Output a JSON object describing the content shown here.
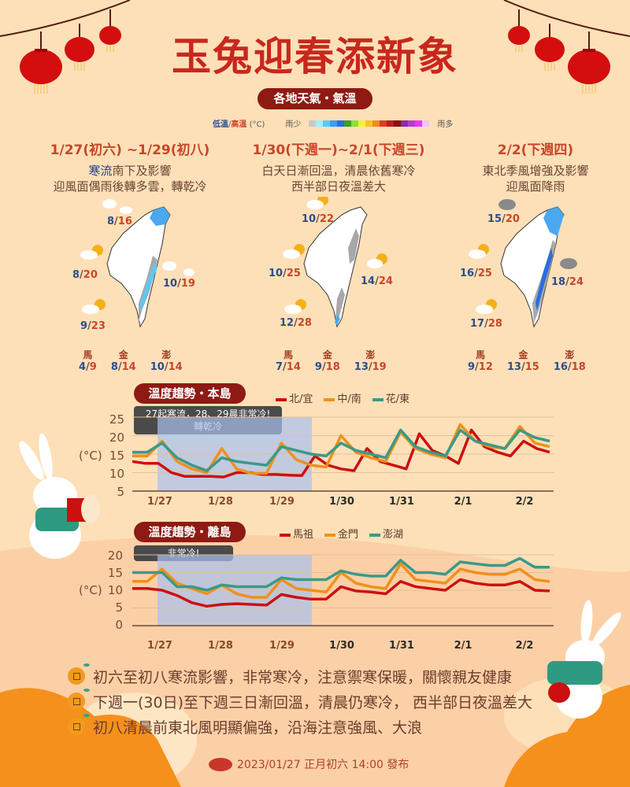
{
  "header": {
    "title": "玉兔迎春添新象",
    "subtitle": "各地天氣・氣溫",
    "legend": {
      "low_label": "低溫",
      "sep": "/",
      "high_label": "高溫",
      "unit": "(°C)",
      "rain_less": "雨少",
      "rain_more": "雨多",
      "rain_colors": [
        "#c8c8c8",
        "#a0f0ff",
        "#5cc8f8",
        "#3c9cf0",
        "#2c6ce0",
        "#3ca028",
        "#8ce038",
        "#f8f038",
        "#f8c030",
        "#f08c20",
        "#e03c20",
        "#b42020",
        "#8c1010",
        "#8c2ca0",
        "#b43cd0",
        "#e03cf0",
        "#f0c8f8"
      ]
    },
    "colors": {
      "title": "#c9271d",
      "pill": "#8e1a13",
      "low": "#2e4c8e",
      "high": "#c9452a",
      "background": "#fde0b8"
    }
  },
  "periods": [
    {
      "heading": "1/27(初六) ~1/29(初八)",
      "desc_line1_em": "寒流",
      "desc_line1": "南下及影響",
      "desc_line2": "迎風面偶雨後轉多雲，轉乾冷",
      "north": {
        "lo": "8",
        "hi": "16",
        "icon": "cloud-icon"
      },
      "central": {
        "lo": "8",
        "hi": "20",
        "icon": "partly-cloudy-icon"
      },
      "east": {
        "lo": "10",
        "hi": "19",
        "icon": "cloud-icon"
      },
      "south": {
        "lo": "9",
        "hi": "23",
        "icon": "partly-cloudy-icon"
      },
      "islands": [
        {
          "name": "馬",
          "lo": "4",
          "hi": "9",
          "icon": "partly-cloudy-icon"
        },
        {
          "name": "金",
          "lo": "8",
          "hi": "14",
          "icon": "partly-cloudy-icon"
        },
        {
          "name": "澎",
          "lo": "10",
          "hi": "14",
          "icon": "partly-cloudy-icon"
        }
      ]
    },
    {
      "heading": "1/30(下週一)~2/1(下週三)",
      "desc_line1": "白天日漸回溫，清晨依舊寒冷",
      "desc_line2": "西半部日夜溫差大",
      "north": {
        "lo": "10",
        "hi": "22",
        "icon": "partly-cloudy-icon"
      },
      "central": {
        "lo": "10",
        "hi": "25",
        "icon": "partly-cloudy-icon"
      },
      "east": {
        "lo": "14",
        "hi": "24",
        "icon": "partly-cloudy-icon"
      },
      "south": {
        "lo": "12",
        "hi": "28",
        "icon": "partly-cloudy-icon"
      },
      "islands": [
        {
          "name": "馬",
          "lo": "7",
          "hi": "14",
          "icon": "partly-cloudy-icon"
        },
        {
          "name": "金",
          "lo": "9",
          "hi": "18",
          "icon": "partly-cloudy-icon"
        },
        {
          "name": "澎",
          "lo": "13",
          "hi": "19",
          "icon": "partly-cloudy-icon"
        }
      ]
    },
    {
      "heading": "2/2(下週四)",
      "desc_line1": "東北季風增強及影響",
      "desc_line2": "迎風面降雨",
      "north": {
        "lo": "15",
        "hi": "20",
        "icon": "rain-icon"
      },
      "central": {
        "lo": "16",
        "hi": "25",
        "icon": "partly-cloudy-icon"
      },
      "east": {
        "lo": "18",
        "hi": "24",
        "icon": "rain-icon"
      },
      "south": {
        "lo": "17",
        "hi": "28",
        "icon": "partly-cloudy-icon"
      },
      "islands": [
        {
          "name": "馬",
          "lo": "9",
          "hi": "12",
          "icon": "cloud-gray-icon"
        },
        {
          "name": "金",
          "lo": "13",
          "hi": "15",
          "icon": "rain-icon"
        },
        {
          "name": "澎",
          "lo": "16",
          "hi": "18",
          "icon": "cloud-icon"
        }
      ]
    }
  ],
  "chart_data": [
    {
      "type": "line",
      "title": "溫度趨勢・本島",
      "annotation_line1": "27起寒流，28、29晨非常冷!",
      "annotation_line2": "轉乾冷",
      "ylabel": "(°C)",
      "ylim": [
        5,
        25
      ],
      "yticks": [
        "25",
        "20",
        "15",
        "10",
        "5"
      ],
      "categories": [
        "1/27",
        "1/28",
        "1/29",
        "1/30",
        "1/31",
        "2/1",
        "2/2"
      ],
      "highlight_range": [
        "1/27",
        "1/29 midday"
      ],
      "series": [
        {
          "name": "北/宜",
          "color": "#cc1010",
          "values": [
            13,
            12.5,
            12.5,
            10,
            9,
            9,
            9,
            8.8,
            10,
            10,
            9.5,
            9.5,
            9.3,
            9.2,
            14.5,
            12,
            11,
            10.5,
            16.5,
            13,
            12,
            11,
            20.5,
            16,
            14.5,
            12.5,
            21.5,
            17,
            15.5,
            14.5,
            18.5,
            16.5,
            15.5
          ]
        },
        {
          "name": "中/南",
          "color": "#f0901a",
          "values": [
            14.5,
            14.5,
            18.5,
            13,
            11,
            10,
            16.5,
            11,
            9.8,
            9.8,
            18,
            13.5,
            12,
            11.5,
            20,
            15.5,
            14,
            13,
            21,
            16.5,
            15,
            14,
            23,
            18.5,
            17,
            16.5,
            22.5,
            18,
            17
          ]
        },
        {
          "name": "花/東",
          "color": "#3a9a88",
          "values": [
            15.5,
            15.5,
            18,
            14,
            12,
            10.5,
            14,
            13,
            12.5,
            12,
            17,
            16,
            15,
            14.5,
            18,
            16,
            15,
            14,
            21.5,
            17,
            15.5,
            14.5,
            21.5,
            18.5,
            17.5,
            16.5,
            21.5,
            19.5,
            18.5
          ]
        }
      ]
    },
    {
      "type": "line",
      "title": "溫度趨勢・離島",
      "annotation_line1": "非常冷!",
      "ylabel": "(°C)",
      "ylim": [
        0,
        20
      ],
      "yticks": [
        "20",
        "15",
        "10",
        "5",
        "0"
      ],
      "categories": [
        "1/27",
        "1/28",
        "1/29",
        "1/30",
        "1/31",
        "2/1",
        "2/2"
      ],
      "highlight_range": [
        "1/27",
        "1/29 midday"
      ],
      "series": [
        {
          "name": "馬祖",
          "color": "#cc1010",
          "values": [
            10.5,
            10.5,
            10,
            8.5,
            6.5,
            5.5,
            6,
            6.2,
            6,
            5.8,
            8.8,
            8,
            7.5,
            7.5,
            11,
            9.8,
            9.5,
            9,
            12.5,
            11,
            10.5,
            10,
            13,
            12,
            11.5,
            11.5,
            12.5,
            10,
            9.8
          ]
        },
        {
          "name": "金門",
          "color": "#f0901a",
          "values": [
            12.5,
            12.5,
            16,
            12,
            10.5,
            9,
            11.5,
            9,
            8,
            8,
            13,
            10.5,
            10,
            9.5,
            15,
            12,
            11,
            10.5,
            17.5,
            13,
            12.5,
            12,
            16,
            15,
            14.5,
            14.5,
            16,
            13,
            12.5
          ]
        },
        {
          "name": "澎湖",
          "color": "#3a9a88",
          "values": [
            15,
            15,
            15,
            11,
            11,
            10,
            11.5,
            11,
            11,
            11,
            13.5,
            13,
            13,
            13,
            15.5,
            14.5,
            14,
            14,
            18.5,
            15,
            15,
            14.5,
            18,
            17.5,
            17,
            17,
            19,
            16.5,
            16.5
          ]
        }
      ]
    }
  ],
  "bullets": [
    "初六至初八寒流影響，非常寒冷，注意禦寒保暖，關懷親友健康",
    "下週一(30日)至下週三日漸回溫，清晨仍寒冷， 西半部日夜溫差大",
    "初八清晨前東北風明顯偏強，沿海注意強風、大浪"
  ],
  "footer": {
    "text": "2023/01/27 正月初六 14:00 發布",
    "logo": "cwb-logo-icon"
  }
}
